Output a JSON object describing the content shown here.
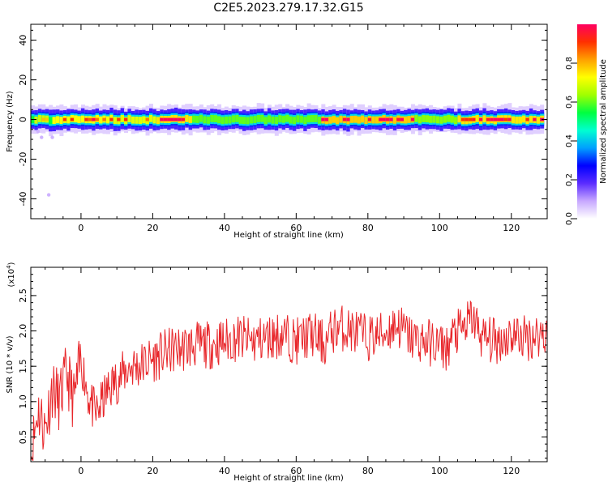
{
  "page_title": "C2E5.2023.279.17.32.G15",
  "colors": {
    "snr_line": "#e8262a",
    "axis": "#000000",
    "background": "#ffffff"
  },
  "chart_data": [
    {
      "type": "heatmap",
      "xlabel": "Height of straight line (km)",
      "ylabel": "Frequency (Hz)",
      "xlim": [
        -14,
        130
      ],
      "ylim": [
        -50,
        48
      ],
      "x_ticks": [
        0,
        20,
        40,
        60,
        80,
        100,
        120
      ],
      "y_ticks": [
        -40,
        -20,
        0,
        20,
        40
      ],
      "colorbar": {
        "label": "Normalized spectral amplitude",
        "range": [
          0.0,
          1.0
        ],
        "ticks": [
          0.0,
          0.2,
          0.4,
          0.6,
          0.8
        ],
        "colormap": [
          "#ffffff",
          "#c7a8ff",
          "#5b2cff",
          "#0000ff",
          "#00a0ff",
          "#00ffd0",
          "#00ff40",
          "#a0ff00",
          "#ffff00",
          "#ffa000",
          "#ff3000",
          "#ff0060"
        ]
      },
      "grid": false,
      "trace": {
        "center_hz": 0,
        "half_width_hz": 3,
        "segments": [
          {
            "x": [
              -13,
              -10
            ],
            "amp": 0.75
          },
          {
            "x": [
              -8,
              8
            ],
            "amp": 0.85
          },
          {
            "x": [
              9,
              20
            ],
            "amp": 0.8
          },
          {
            "x": [
              21,
              30
            ],
            "amp": 0.9
          },
          {
            "x": [
              31,
              66
            ],
            "amp": 0.6
          },
          {
            "x": [
              67,
              92
            ],
            "amp": 0.95
          },
          {
            "x": [
              93,
              104
            ],
            "amp": 0.65
          },
          {
            "x": [
              105,
              128
            ],
            "amp": 0.9
          }
        ]
      }
    },
    {
      "type": "line",
      "xlabel": "Height of straight line (km)",
      "ylabel": "SNR (10 * v/v)",
      "y_multiplier": "(x10",
      "y_multiplier_exp": "4",
      "y_multiplier_close": ")",
      "xlim": [
        -14,
        130
      ],
      "ylim": [
        0.15,
        2.9
      ],
      "x_ticks": [
        0,
        20,
        40,
        60,
        80,
        100,
        120
      ],
      "y_ticks": [
        0.5,
        1.0,
        1.5,
        2.0,
        2.5
      ],
      "y_tick_labels": [
        "0.5",
        "1.0",
        "1.5",
        "2.0",
        "2.5"
      ],
      "grid": false,
      "series": [
        {
          "x": [
            -14,
            -12,
            -10,
            -8,
            -6,
            -4,
            -2,
            0,
            2,
            4,
            6,
            8,
            10,
            12,
            14,
            16,
            18,
            20,
            24,
            28,
            32,
            36,
            40,
            44,
            48,
            52,
            56,
            60,
            64,
            66,
            68,
            70,
            72,
            76,
            80,
            84,
            88,
            92,
            96,
            100,
            102,
            104,
            106,
            108,
            109,
            112,
            116,
            120,
            124,
            128,
            130
          ],
          "y": [
            0.2,
            0.9,
            0.6,
            1.2,
            1.0,
            1.4,
            1.0,
            1.6,
            1.1,
            0.8,
            1.0,
            1.2,
            1.3,
            1.4,
            1.5,
            1.5,
            1.55,
            1.6,
            1.7,
            1.75,
            1.8,
            1.8,
            1.85,
            1.9,
            1.85,
            1.9,
            1.95,
            1.85,
            1.95,
            1.9,
            1.8,
            2.0,
            2.05,
            2.0,
            1.9,
            1.95,
            2.1,
            1.9,
            1.85,
            1.8,
            1.75,
            1.95,
            2.0,
            2.1,
            2.2,
            1.9,
            1.85,
            1.95,
            1.9,
            1.95,
            2.0
          ]
        }
      ]
    }
  ]
}
